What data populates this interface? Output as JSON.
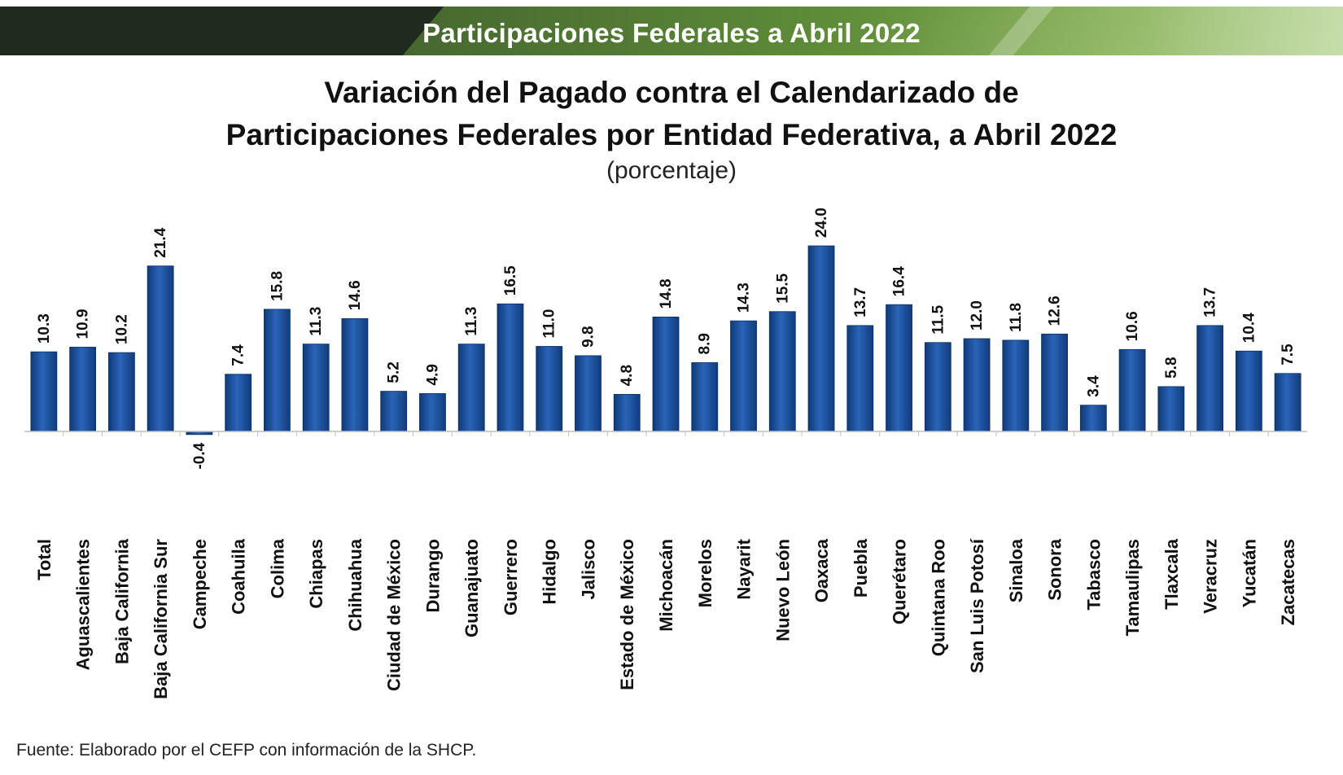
{
  "banner": {
    "title": "Participaciones Federales a Abril 2022"
  },
  "chart_data": {
    "type": "bar",
    "title": "Variación del Pagado contra el Calendarizado de Participaciones Federales por Entidad Federativa, a Abril 2022",
    "title_lines": [
      "Variación del Pagado contra el Calendarizado de",
      "Participaciones Federales por Entidad Federativa, a Abril 2022"
    ],
    "subtitle": "(porcentaje)",
    "xlabel": "",
    "ylabel": "",
    "grid": false,
    "legend": "none",
    "color": "#1b4f9a",
    "categories": [
      "Total",
      "Aguascalientes",
      "Baja California",
      "Baja California Sur",
      "Campeche",
      "Coahuila",
      "Colima",
      "Chiapas",
      "Chihuahua",
      "Ciudad de México",
      "Durango",
      "Guanajuato",
      "Guerrero",
      "Hidalgo",
      "Jalisco",
      "Estado de México",
      "Michoacán",
      "Morelos",
      "Nayarit",
      "Nuevo León",
      "Oaxaca",
      "Puebla",
      "Querétaro",
      "Quintana Roo",
      "San Luis Potosí",
      "Sinaloa",
      "Sonora",
      "Tabasco",
      "Tamaulipas",
      "Tlaxcala",
      "Veracruz",
      "Yucatán",
      "Zacatecas"
    ],
    "values": [
      10.3,
      10.9,
      10.2,
      21.4,
      -0.4,
      7.4,
      15.8,
      11.3,
      14.6,
      5.2,
      4.9,
      11.3,
      16.5,
      11.0,
      9.8,
      4.8,
      14.8,
      8.9,
      14.3,
      15.5,
      24.0,
      13.7,
      16.4,
      11.5,
      12.0,
      11.8,
      12.6,
      3.4,
      10.6,
      5.8,
      13.7,
      10.4,
      7.5
    ],
    "value_labels": [
      "10.3",
      "10.9",
      "10.2",
      "21.4",
      "-0.4",
      "7.4",
      "15.8",
      "11.3",
      "14.6",
      "5.2",
      "4.9",
      "11.3",
      "16.5",
      "11.0",
      "9.8",
      "4.8",
      "14.8",
      "8.9",
      "14.3",
      "15.5",
      "24.0",
      "13.7",
      "16.4",
      "11.5",
      "12.0",
      "11.8",
      "12.6",
      "3.4",
      "10.6",
      "5.8",
      "13.7",
      "10.4",
      "7.5"
    ]
  },
  "source": "Fuente: Elaborado por el CEFP con información de la SHCP."
}
